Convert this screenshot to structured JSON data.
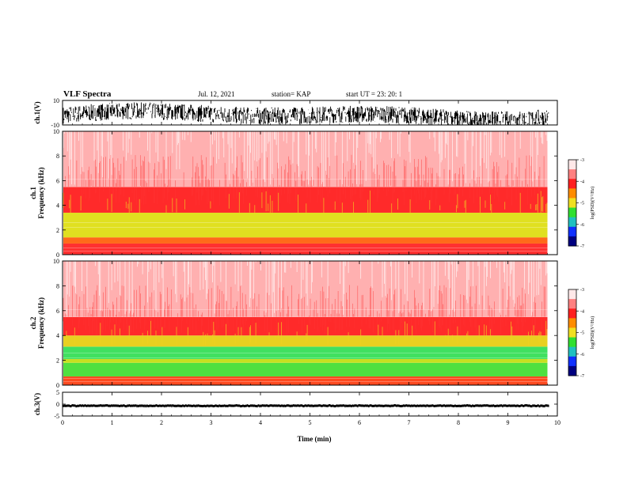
{
  "header": {
    "title": "VLF Spectra",
    "date": "Jul. 12, 2021",
    "station": "station= KAP",
    "start": "start UT = 23: 20: 1"
  },
  "chart_data": [
    {
      "type": "line",
      "panel": "ch1-waveform",
      "ylabel": "ch.1(V)",
      "ylim": [
        -10,
        10
      ],
      "yticks": [
        "10",
        "-10"
      ],
      "xlim": [
        0,
        10
      ],
      "series": [
        {
          "values_range": [
            -10,
            10
          ]
        }
      ]
    },
    {
      "type": "heatmap",
      "panel": "ch1-spectrogram",
      "ylabel": "ch.1\nFrequency (kHz)",
      "ylim": [
        0,
        10
      ],
      "yticks": [
        "0",
        "2",
        "4",
        "6",
        "8",
        "10"
      ],
      "xlim": [
        0,
        9.8
      ],
      "bands": [
        {
          "from": 0,
          "to": 0.9,
          "color": "#ff3030"
        },
        {
          "from": 0.9,
          "to": 1.4,
          "color": "#ff6a1a"
        },
        {
          "from": 1.4,
          "to": 3.4,
          "color": "#e0e020"
        },
        {
          "from": 3.4,
          "to": 5.5,
          "color": "#ff2a2a"
        },
        {
          "from": 5.5,
          "to": 10,
          "color": "#ffb0b0"
        }
      ],
      "colorbar": {
        "label": "log(PSD)(V²/Hz)",
        "ticks": [
          "-3",
          "-4",
          "-5",
          "-6",
          "-7"
        ],
        "range": [
          -7,
          -3
        ]
      }
    },
    {
      "type": "heatmap",
      "panel": "ch2-spectrogram",
      "ylabel": "ch.2\nFrequency (kHz)",
      "ylim": [
        0,
        10
      ],
      "yticks": [
        "0",
        "2",
        "4",
        "6",
        "8",
        "10"
      ],
      "xlim": [
        0,
        9.8
      ],
      "bands": [
        {
          "from": 0,
          "to": 0.7,
          "color": "#ff4a20"
        },
        {
          "from": 0.7,
          "to": 1.8,
          "color": "#50e040"
        },
        {
          "from": 1.8,
          "to": 2.1,
          "color": "#c8e020"
        },
        {
          "from": 2.1,
          "to": 3.1,
          "color": "#40e060"
        },
        {
          "from": 3.1,
          "to": 4.0,
          "color": "#e8d020"
        },
        {
          "from": 4.0,
          "to": 5.5,
          "color": "#ff2a2a"
        },
        {
          "from": 5.5,
          "to": 10,
          "color": "#ffb0b0"
        }
      ],
      "colorbar": {
        "label": "log(PSD)(V²/Hz)",
        "ticks": [
          "-3",
          "-4",
          "-5",
          "-6",
          "-7"
        ],
        "range": [
          -7,
          -3
        ]
      }
    },
    {
      "type": "line",
      "panel": "ch3-waveform",
      "ylabel": "ch.3(V)",
      "ylim": [
        -5,
        5
      ],
      "yticks": [
        "5",
        "0",
        "-5"
      ],
      "xlim": [
        0,
        10
      ],
      "series": [
        {
          "values_range": [
            -1.2,
            -0.2
          ]
        }
      ]
    }
  ],
  "xaxis": {
    "label": "Time (min)",
    "range": [
      0,
      10
    ],
    "ticks": [
      "0",
      "1",
      "2",
      "3",
      "4",
      "5",
      "6",
      "7",
      "8",
      "9",
      "10"
    ]
  },
  "colors": {
    "waveform": "#000000",
    "noise": "#ffffff"
  }
}
